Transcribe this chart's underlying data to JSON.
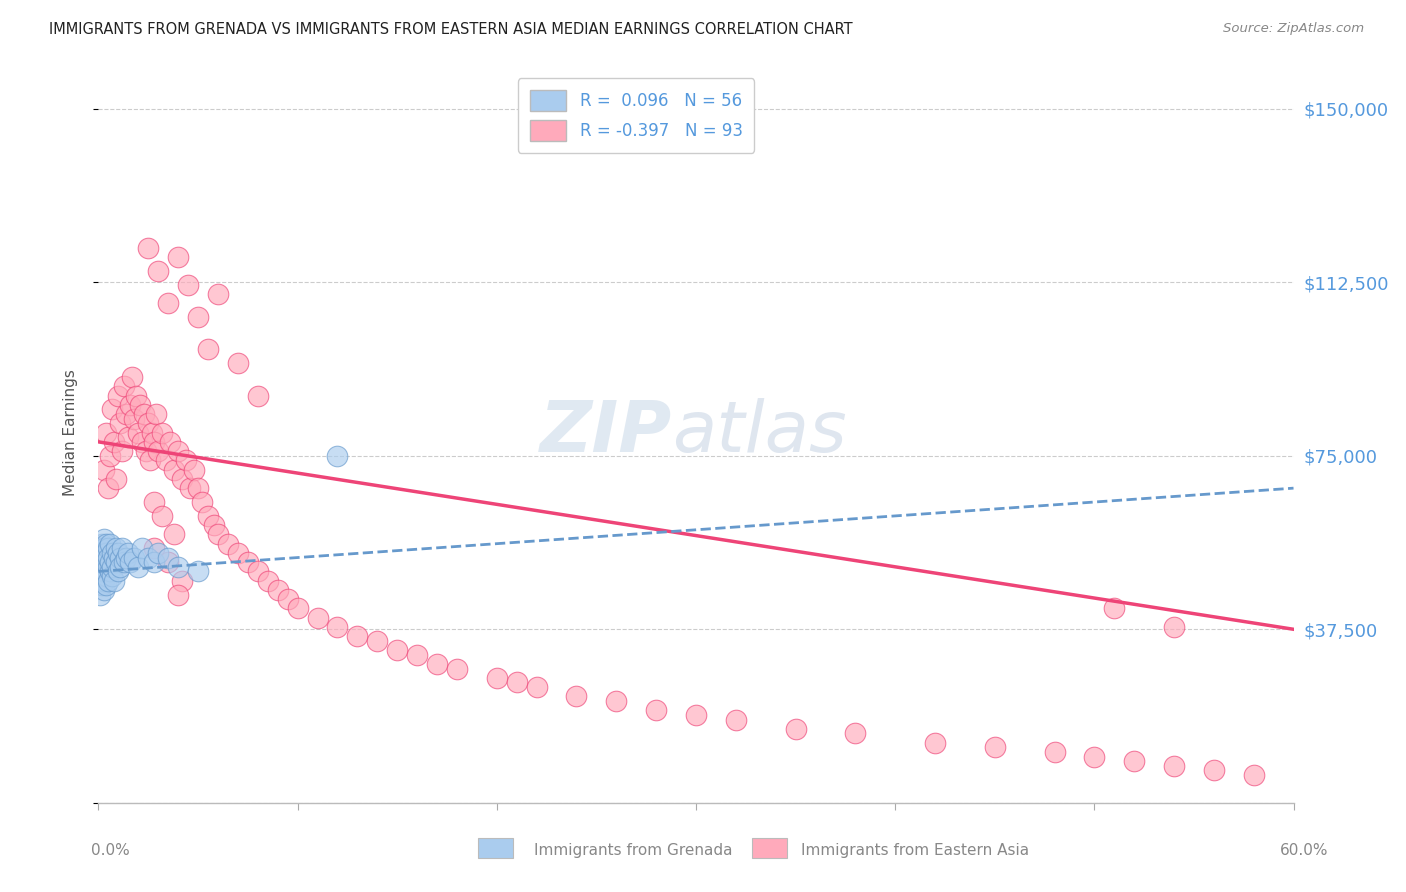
{
  "title": "IMMIGRANTS FROM GRENADA VS IMMIGRANTS FROM EASTERN ASIA MEDIAN EARNINGS CORRELATION CHART",
  "source": "Source: ZipAtlas.com",
  "ylabel": "Median Earnings",
  "yticks": [
    0,
    37500,
    75000,
    112500,
    150000
  ],
  "ytick_labels": [
    "",
    "$37,500",
    "$75,000",
    "$112,500",
    "$150,000"
  ],
  "xlim": [
    0,
    0.6
  ],
  "ylim": [
    0,
    160000
  ],
  "label1": "Immigrants from Grenada",
  "label2": "Immigrants from Eastern Asia",
  "color1": "#aaccee",
  "color2": "#ffaabb",
  "trend_color1": "#6699cc",
  "trend_color2": "#ee4477",
  "background_color": "#ffffff",
  "grid_color": "#cccccc",
  "title_color": "#222222",
  "right_label_color": "#5599dd",
  "grenada_x": [
    0.001,
    0.001,
    0.001,
    0.001,
    0.001,
    0.002,
    0.002,
    0.002,
    0.002,
    0.002,
    0.003,
    0.003,
    0.003,
    0.003,
    0.003,
    0.003,
    0.003,
    0.003,
    0.004,
    0.004,
    0.004,
    0.004,
    0.004,
    0.005,
    0.005,
    0.005,
    0.005,
    0.006,
    0.006,
    0.006,
    0.007,
    0.007,
    0.007,
    0.008,
    0.008,
    0.009,
    0.009,
    0.01,
    0.01,
    0.011,
    0.011,
    0.012,
    0.013,
    0.014,
    0.015,
    0.016,
    0.018,
    0.02,
    0.022,
    0.025,
    0.028,
    0.03,
    0.035,
    0.04,
    0.05,
    0.12
  ],
  "grenada_y": [
    48000,
    52000,
    45000,
    55000,
    50000,
    53000,
    47000,
    56000,
    51000,
    49000,
    54000,
    48000,
    57000,
    52000,
    46000,
    55000,
    50000,
    53000,
    56000,
    49000,
    52000,
    47000,
    54000,
    51000,
    55000,
    48000,
    53000,
    50000,
    56000,
    52000,
    49000,
    54000,
    51000,
    53000,
    48000,
    55000,
    52000,
    50000,
    54000,
    53000,
    51000,
    55000,
    52000,
    53000,
    54000,
    52000,
    53000,
    51000,
    55000,
    53000,
    52000,
    54000,
    53000,
    51000,
    50000,
    75000
  ],
  "eastern_asia_x": [
    0.003,
    0.004,
    0.005,
    0.006,
    0.007,
    0.008,
    0.009,
    0.01,
    0.011,
    0.012,
    0.013,
    0.014,
    0.015,
    0.016,
    0.017,
    0.018,
    0.019,
    0.02,
    0.021,
    0.022,
    0.023,
    0.024,
    0.025,
    0.026,
    0.027,
    0.028,
    0.029,
    0.03,
    0.032,
    0.034,
    0.036,
    0.038,
    0.04,
    0.042,
    0.044,
    0.046,
    0.048,
    0.05,
    0.052,
    0.055,
    0.058,
    0.06,
    0.065,
    0.07,
    0.075,
    0.08,
    0.085,
    0.09,
    0.095,
    0.1,
    0.11,
    0.12,
    0.13,
    0.14,
    0.15,
    0.16,
    0.17,
    0.18,
    0.2,
    0.21,
    0.22,
    0.24,
    0.26,
    0.28,
    0.3,
    0.32,
    0.35,
    0.38,
    0.42,
    0.45,
    0.48,
    0.5,
    0.52,
    0.54,
    0.56,
    0.58,
    0.025,
    0.03,
    0.035,
    0.04,
    0.045,
    0.05,
    0.055,
    0.06,
    0.07,
    0.08,
    0.028,
    0.032,
    0.038,
    0.028,
    0.035,
    0.042,
    0.04,
    0.51,
    0.54
  ],
  "eastern_asia_y": [
    72000,
    80000,
    68000,
    75000,
    85000,
    78000,
    70000,
    88000,
    82000,
    76000,
    90000,
    84000,
    79000,
    86000,
    92000,
    83000,
    88000,
    80000,
    86000,
    78000,
    84000,
    76000,
    82000,
    74000,
    80000,
    78000,
    84000,
    76000,
    80000,
    74000,
    78000,
    72000,
    76000,
    70000,
    74000,
    68000,
    72000,
    68000,
    65000,
    62000,
    60000,
    58000,
    56000,
    54000,
    52000,
    50000,
    48000,
    46000,
    44000,
    42000,
    40000,
    38000,
    36000,
    35000,
    33000,
    32000,
    30000,
    29000,
    27000,
    26000,
    25000,
    23000,
    22000,
    20000,
    19000,
    18000,
    16000,
    15000,
    13000,
    12000,
    11000,
    10000,
    9000,
    8000,
    7000,
    6000,
    120000,
    115000,
    108000,
    118000,
    112000,
    105000,
    98000,
    110000,
    95000,
    88000,
    65000,
    62000,
    58000,
    55000,
    52000,
    48000,
    45000,
    42000,
    38000
  ],
  "grenada_trend_x": [
    0.0,
    0.6
  ],
  "grenada_trend_y": [
    50000,
    68000
  ],
  "ea_trend_x": [
    0.0,
    0.6
  ],
  "ea_trend_y": [
    78000,
    37500
  ],
  "watermark": "ZIPatlas",
  "watermark_color": "#c8d8e8"
}
